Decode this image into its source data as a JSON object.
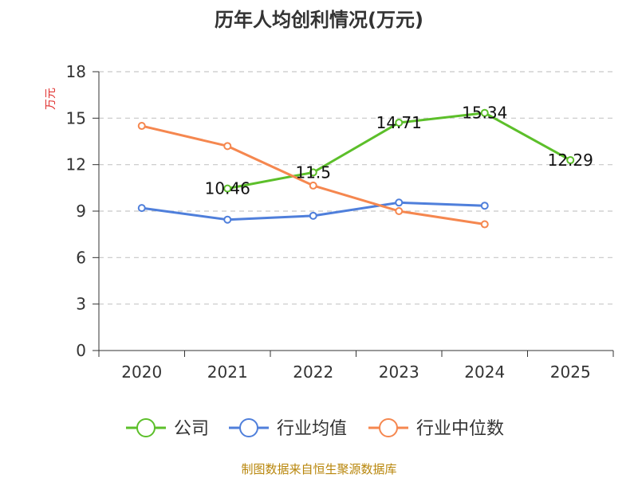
{
  "chart_data": {
    "type": "line",
    "title": "历年人均创利情况(万元)",
    "xlabel": "",
    "ylabel": "万元",
    "categories": [
      "2020",
      "2021",
      "2022",
      "2023",
      "2024",
      "2025"
    ],
    "ylim": [
      0,
      18
    ],
    "yticks": [
      0,
      3,
      6,
      9,
      12,
      15,
      18
    ],
    "grid": true,
    "legend_position": "bottom",
    "series": [
      {
        "name": "公司",
        "color": "#5cbf2a",
        "values": [
          null,
          10.46,
          11.5,
          14.71,
          15.34,
          12.29
        ],
        "labels": [
          "",
          "10.46",
          "11.5",
          "14.71",
          "15.34",
          "12.29"
        ]
      },
      {
        "name": "行业均值",
        "color": "#4f7fdb",
        "values": [
          9.2,
          8.45,
          8.7,
          9.55,
          9.35,
          null
        ],
        "labels": []
      },
      {
        "name": "行业中位数",
        "color": "#f5874f",
        "values": [
          14.5,
          13.2,
          10.65,
          9.0,
          8.15,
          null
        ],
        "labels": []
      }
    ]
  },
  "source": "制图数据来自恒生聚源数据库"
}
